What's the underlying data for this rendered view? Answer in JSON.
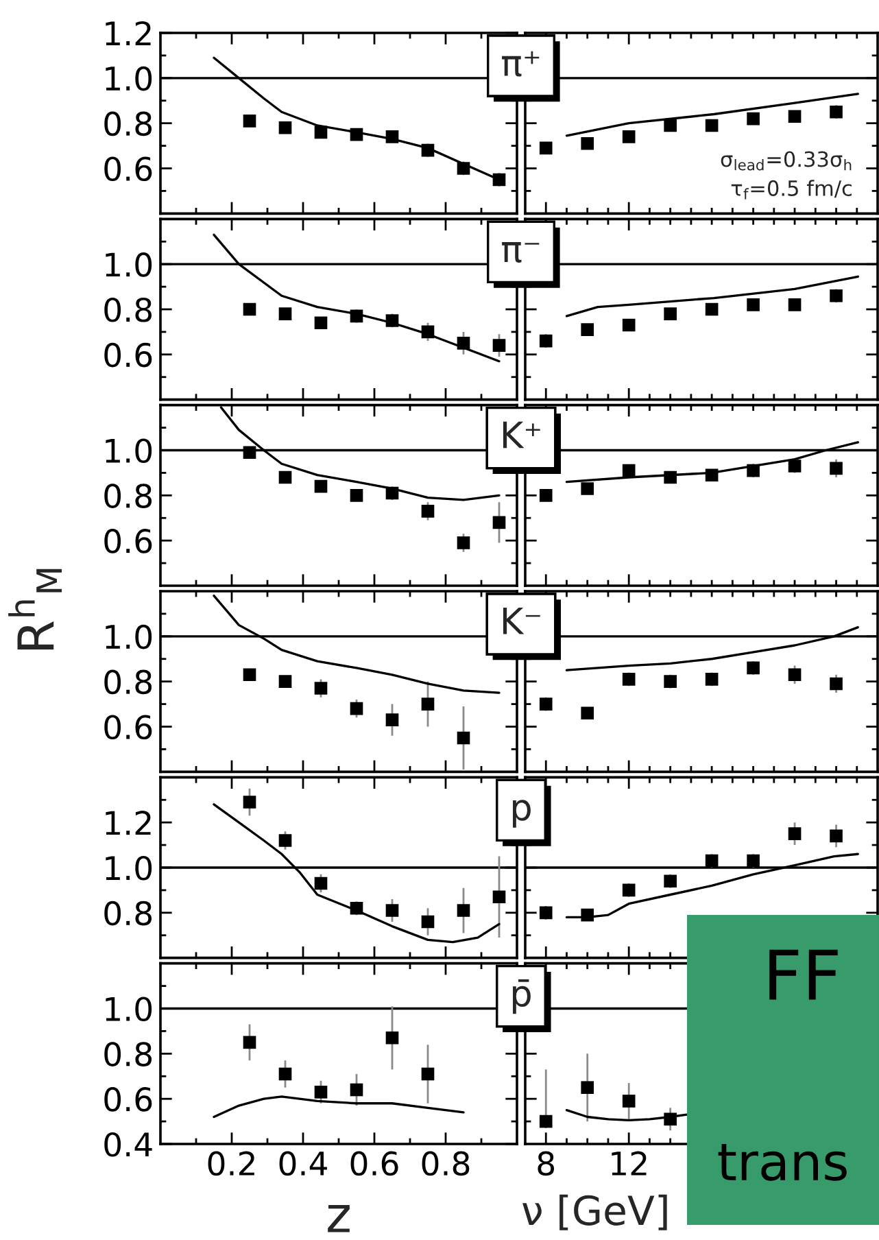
{
  "chart_data": [
    {
      "type": "scatter",
      "title": "π⁺",
      "xlim": [
        0,
        1
      ],
      "xticks": [
        {
          "value": 0.1,
          "label": null
        },
        0.2,
        {
          "value": 0.3,
          "label": null
        },
        0.4,
        {
          "value": 0.5,
          "label": null
        },
        0.6,
        {
          "value": 0.7,
          "label": null
        },
        0.8,
        {
          "value": 0.9,
          "label": null
        }
      ],
      "ylim": [
        0.4,
        1.2
      ],
      "yticks": [
        {
          "value": 0.5,
          "label": null
        },
        0.6,
        {
          "value": 0.7,
          "label": null
        },
        0.8,
        {
          "value": 0.9,
          "label": null
        },
        {
          "value": 1.0,
          "label": "1.0"
        },
        {
          "value": 1.1,
          "label": null
        },
        1.2
      ],
      "tick_labels": "y",
      "ref_lines": [
        {
          "axis": "y",
          "value": 1.0,
          "color": "#000000"
        }
      ],
      "series": [
        {
          "type": "scatter",
          "marker": "square",
          "color": "#000000",
          "x": [
            0.25,
            0.35,
            0.45,
            0.55,
            0.65,
            0.75,
            0.85,
            0.95
          ],
          "values": [
            0.81,
            0.78,
            0.76,
            0.75,
            0.74,
            0.68,
            0.6,
            0.55
          ],
          "errors": [
            0.02,
            0.02,
            0.02,
            0.02,
            0.02,
            0.03,
            0.03,
            0.03
          ]
        },
        {
          "type": "line",
          "color": "#000000",
          "x": [
            0.15,
            0.22,
            0.29,
            0.34,
            0.44,
            0.55,
            0.65,
            0.75,
            0.85,
            0.95
          ],
          "values": [
            1.09,
            1.0,
            0.91,
            0.85,
            0.79,
            0.76,
            0.73,
            0.69,
            0.62,
            0.55
          ]
        }
      ]
    },
    {
      "type": "scatter",
      "xlim": [
        7,
        24
      ],
      "xticks": [
        8,
        {
          "value": 9,
          "label": null
        },
        {
          "value": 10,
          "label": null
        },
        {
          "value": 11,
          "label": null
        },
        12,
        {
          "value": 13,
          "label": null
        },
        {
          "value": 14,
          "label": null
        },
        {
          "value": 15,
          "label": null
        },
        {
          "value": 16,
          "label": null
        },
        {
          "value": 17,
          "label": null
        },
        {
          "value": 18,
          "label": null
        },
        {
          "value": 19,
          "label": null
        },
        {
          "value": 20,
          "label": null
        },
        {
          "value": 21,
          "label": null
        },
        {
          "value": 22,
          "label": null
        },
        {
          "value": 23,
          "label": null
        }
      ],
      "ylim": [
        0.4,
        1.2
      ],
      "yticks": [
        {
          "value": 0.5,
          "label": null
        },
        0.6,
        {
          "value": 0.7,
          "label": null
        },
        0.8,
        {
          "value": 0.9,
          "label": null
        },
        1.0,
        {
          "value": 1.1,
          "label": null
        }
      ],
      "tick_labels": false,
      "ref_lines": [
        {
          "axis": "y",
          "value": 1.0,
          "color": "#000000"
        }
      ],
      "annotations": [
        "σ$_{lead}$=0.33σ$_{h}$",
        "τ$_{f}$=0.5 fm/c"
      ],
      "series": [
        {
          "type": "scatter",
          "marker": "square",
          "color": "#000000",
          "x": [
            8,
            10,
            12,
            14,
            16,
            18,
            20,
            22
          ],
          "values": [
            0.69,
            0.71,
            0.74,
            0.79,
            0.79,
            0.82,
            0.83,
            0.85
          ],
          "errors": [
            0.02,
            0.02,
            0.02,
            0.02,
            0.02,
            0.02,
            0.02,
            0.03
          ]
        },
        {
          "type": "line",
          "color": "#000000",
          "x": [
            9.0,
            12,
            16.1,
            20,
            23.05
          ],
          "values": [
            0.745,
            0.8,
            0.84,
            0.89,
            0.93
          ]
        }
      ]
    },
    {
      "type": "scatter",
      "title": "π⁻",
      "xlim": [
        0,
        1
      ],
      "xticks": [
        {
          "value": 0.1,
          "label": null
        },
        0.2,
        {
          "value": 0.3,
          "label": null
        },
        0.4,
        {
          "value": 0.5,
          "label": null
        },
        0.6,
        {
          "value": 0.7,
          "label": null
        },
        0.8,
        {
          "value": 0.9,
          "label": null
        }
      ],
      "ylim": [
        0.4,
        1.2
      ],
      "yticks": [
        {
          "value": 0.5,
          "label": null
        },
        0.6,
        {
          "value": 0.7,
          "label": null
        },
        0.8,
        {
          "value": 0.9,
          "label": null
        },
        {
          "value": 1.0,
          "label": "1.0"
        },
        {
          "value": 1.1,
          "label": null
        }
      ],
      "tick_labels": "y",
      "ref_lines": [
        {
          "axis": "y",
          "value": 1.0,
          "color": "#000000"
        }
      ],
      "series": [
        {
          "type": "scatter",
          "marker": "square",
          "color": "#000000",
          "x": [
            0.25,
            0.35,
            0.45,
            0.55,
            0.65,
            0.75,
            0.85,
            0.95
          ],
          "values": [
            0.8,
            0.78,
            0.74,
            0.77,
            0.75,
            0.7,
            0.65,
            0.64
          ],
          "errors": [
            0.02,
            0.02,
            0.02,
            0.03,
            0.03,
            0.04,
            0.05,
            0.05
          ]
        },
        {
          "type": "line",
          "color": "#000000",
          "x": [
            0.15,
            0.22,
            0.34,
            0.44,
            0.55,
            0.65,
            0.75,
            0.85,
            0.95
          ],
          "values": [
            1.13,
            1.0,
            0.86,
            0.81,
            0.78,
            0.74,
            0.69,
            0.63,
            0.57
          ]
        }
      ]
    },
    {
      "type": "scatter",
      "xlim": [
        7,
        24
      ],
      "xticks": [
        8,
        {
          "value": 9,
          "label": null
        },
        {
          "value": 10,
          "label": null
        },
        {
          "value": 11,
          "label": null
        },
        12,
        {
          "value": 13,
          "label": null
        },
        {
          "value": 14,
          "label": null
        },
        {
          "value": 15,
          "label": null
        },
        {
          "value": 16,
          "label": null
        },
        {
          "value": 17,
          "label": null
        },
        {
          "value": 18,
          "label": null
        },
        {
          "value": 19,
          "label": null
        },
        {
          "value": 20,
          "label": null
        },
        {
          "value": 21,
          "label": null
        },
        {
          "value": 22,
          "label": null
        },
        {
          "value": 23,
          "label": null
        }
      ],
      "ylim": [
        0.4,
        1.2
      ],
      "yticks": [
        {
          "value": 0.5,
          "label": null
        },
        0.6,
        {
          "value": 0.7,
          "label": null
        },
        0.8,
        {
          "value": 0.9,
          "label": null
        },
        1.0,
        {
          "value": 1.1,
          "label": null
        }
      ],
      "tick_labels": false,
      "ref_lines": [
        {
          "axis": "y",
          "value": 1.0,
          "color": "#000000"
        }
      ],
      "series": [
        {
          "type": "scatter",
          "marker": "square",
          "color": "#000000",
          "x": [
            8,
            10,
            12,
            14,
            16,
            18,
            20,
            22
          ],
          "values": [
            0.66,
            0.71,
            0.73,
            0.78,
            0.8,
            0.82,
            0.82,
            0.86
          ],
          "errors": [
            0.03,
            0.02,
            0.02,
            0.02,
            0.02,
            0.02,
            0.02,
            0.03
          ]
        },
        {
          "type": "line",
          "color": "#000000",
          "x": [
            9.0,
            10.5,
            12,
            16.1,
            20,
            23.05
          ],
          "values": [
            0.77,
            0.81,
            0.82,
            0.85,
            0.89,
            0.945
          ]
        }
      ]
    },
    {
      "type": "scatter",
      "title": "K⁺",
      "xlim": [
        0,
        1
      ],
      "xticks": [
        {
          "value": 0.1,
          "label": null
        },
        0.2,
        {
          "value": 0.3,
          "label": null
        },
        0.4,
        {
          "value": 0.5,
          "label": null
        },
        0.6,
        {
          "value": 0.7,
          "label": null
        },
        0.8,
        {
          "value": 0.9,
          "label": null
        }
      ],
      "ylim": [
        0.4,
        1.2
      ],
      "yticks": [
        {
          "value": 0.5,
          "label": null
        },
        0.6,
        {
          "value": 0.7,
          "label": null
        },
        0.8,
        {
          "value": 0.9,
          "label": null
        },
        {
          "value": 1.0,
          "label": "1.0"
        },
        {
          "value": 1.1,
          "label": null
        }
      ],
      "tick_labels": "y",
      "ref_lines": [
        {
          "axis": "y",
          "value": 1.0,
          "color": "#000000"
        }
      ],
      "series": [
        {
          "type": "scatter",
          "marker": "square",
          "color": "#000000",
          "x": [
            0.25,
            0.35,
            0.45,
            0.55,
            0.65,
            0.75,
            0.85,
            0.95
          ],
          "values": [
            0.99,
            0.88,
            0.84,
            0.8,
            0.81,
            0.73,
            0.59,
            0.68
          ],
          "errors": [
            0.02,
            0.02,
            0.02,
            0.02,
            0.03,
            0.04,
            0.04,
            0.09
          ]
        },
        {
          "type": "line",
          "color": "#000000",
          "x": [
            0.17,
            0.22,
            0.29,
            0.34,
            0.44,
            0.55,
            0.65,
            0.75,
            0.85,
            0.95
          ],
          "values": [
            1.19,
            1.09,
            1.0,
            0.94,
            0.89,
            0.86,
            0.83,
            0.79,
            0.78,
            0.8
          ]
        }
      ]
    },
    {
      "type": "scatter",
      "xlim": [
        7,
        24
      ],
      "xticks": [
        8,
        {
          "value": 9,
          "label": null
        },
        {
          "value": 10,
          "label": null
        },
        {
          "value": 11,
          "label": null
        },
        12,
        {
          "value": 13,
          "label": null
        },
        {
          "value": 14,
          "label": null
        },
        {
          "value": 15,
          "label": null
        },
        {
          "value": 16,
          "label": null
        },
        {
          "value": 17,
          "label": null
        },
        {
          "value": 18,
          "label": null
        },
        {
          "value": 19,
          "label": null
        },
        {
          "value": 20,
          "label": null
        },
        {
          "value": 21,
          "label": null
        },
        {
          "value": 22,
          "label": null
        },
        {
          "value": 23,
          "label": null
        }
      ],
      "ylim": [
        0.4,
        1.2
      ],
      "yticks": [
        {
          "value": 0.5,
          "label": null
        },
        0.6,
        {
          "value": 0.7,
          "label": null
        },
        0.8,
        {
          "value": 0.9,
          "label": null
        },
        1.0,
        {
          "value": 1.1,
          "label": null
        }
      ],
      "tick_labels": false,
      "ref_lines": [
        {
          "axis": "y",
          "value": 1.0,
          "color": "#000000"
        }
      ],
      "series": [
        {
          "type": "scatter",
          "marker": "square",
          "color": "#000000",
          "x": [
            8,
            10,
            12,
            14,
            16,
            18,
            20,
            22
          ],
          "values": [
            0.8,
            0.83,
            0.91,
            0.88,
            0.89,
            0.91,
            0.93,
            0.92
          ],
          "errors": [
            0.02,
            0.02,
            0.02,
            0.02,
            0.02,
            0.03,
            0.03,
            0.04
          ]
        },
        {
          "type": "line",
          "color": "#000000",
          "x": [
            9.0,
            12,
            16,
            20,
            21.5,
            23.05
          ],
          "values": [
            0.86,
            0.88,
            0.9,
            0.96,
            1.0,
            1.035
          ]
        }
      ]
    },
    {
      "type": "scatter",
      "title": "K⁻",
      "ylabel": "R$^{h}$$_{M}$",
      "xlim": [
        0,
        1
      ],
      "xticks": [
        {
          "value": 0.1,
          "label": null
        },
        0.2,
        {
          "value": 0.3,
          "label": null
        },
        0.4,
        {
          "value": 0.5,
          "label": null
        },
        0.6,
        {
          "value": 0.7,
          "label": null
        },
        0.8,
        {
          "value": 0.9,
          "label": null
        }
      ],
      "ylim": [
        0.4,
        1.2
      ],
      "yticks": [
        {
          "value": 0.5,
          "label": null
        },
        0.6,
        {
          "value": 0.7,
          "label": null
        },
        0.8,
        {
          "value": 0.9,
          "label": null
        },
        {
          "value": 1.0,
          "label": "1.0"
        },
        {
          "value": 1.1,
          "label": null
        }
      ],
      "tick_labels": "y",
      "ref_lines": [
        {
          "axis": "y",
          "value": 1.0,
          "color": "#000000"
        }
      ],
      "series": [
        {
          "type": "scatter",
          "marker": "square",
          "color": "#000000",
          "x": [
            0.25,
            0.35,
            0.45,
            0.55,
            0.65,
            0.75,
            0.85
          ],
          "values": [
            0.83,
            0.8,
            0.77,
            0.68,
            0.63,
            0.7,
            0.55
          ],
          "errors": [
            0.02,
            0.02,
            0.04,
            0.04,
            0.07,
            0.1,
            0.14
          ]
        },
        {
          "type": "line",
          "color": "#000000",
          "x": [
            0.15,
            0.22,
            0.29,
            0.34,
            0.44,
            0.55,
            0.65,
            0.75,
            0.85,
            0.95
          ],
          "values": [
            1.18,
            1.05,
            0.99,
            0.94,
            0.89,
            0.86,
            0.83,
            0.79,
            0.76,
            0.75
          ]
        }
      ]
    },
    {
      "type": "scatter",
      "xlim": [
        7,
        24
      ],
      "xticks": [
        8,
        {
          "value": 9,
          "label": null
        },
        {
          "value": 10,
          "label": null
        },
        {
          "value": 11,
          "label": null
        },
        12,
        {
          "value": 13,
          "label": null
        },
        {
          "value": 14,
          "label": null
        },
        {
          "value": 15,
          "label": null
        },
        {
          "value": 16,
          "label": null
        },
        {
          "value": 17,
          "label": null
        },
        {
          "value": 18,
          "label": null
        },
        {
          "value": 19,
          "label": null
        },
        {
          "value": 20,
          "label": null
        },
        {
          "value": 21,
          "label": null
        },
        {
          "value": 22,
          "label": null
        },
        {
          "value": 23,
          "label": null
        }
      ],
      "ylim": [
        0.4,
        1.2
      ],
      "yticks": [
        {
          "value": 0.5,
          "label": null
        },
        0.6,
        {
          "value": 0.7,
          "label": null
        },
        0.8,
        {
          "value": 0.9,
          "label": null
        },
        1.0,
        {
          "value": 1.1,
          "label": null
        }
      ],
      "tick_labels": false,
      "ref_lines": [
        {
          "axis": "y",
          "value": 1.0,
          "color": "#000000"
        }
      ],
      "series": [
        {
          "type": "scatter",
          "marker": "square",
          "color": "#000000",
          "x": [
            8,
            10,
            12,
            14,
            16,
            18,
            20,
            22
          ],
          "values": [
            0.7,
            0.66,
            0.81,
            0.8,
            0.81,
            0.86,
            0.83,
            0.79
          ],
          "errors": [
            0.03,
            0.02,
            0.03,
            0.03,
            0.03,
            0.03,
            0.04,
            0.04
          ]
        },
        {
          "type": "line",
          "color": "#000000",
          "x": [
            9.0,
            12,
            14,
            16,
            18,
            20,
            21.9,
            23.05
          ],
          "values": [
            0.85,
            0.87,
            0.88,
            0.9,
            0.93,
            0.96,
            1.0,
            1.04
          ]
        }
      ]
    },
    {
      "type": "scatter",
      "title": "p",
      "xlim": [
        0,
        1
      ],
      "xticks": [
        {
          "value": 0.1,
          "label": null
        },
        0.2,
        {
          "value": 0.3,
          "label": null
        },
        0.4,
        {
          "value": 0.5,
          "label": null
        },
        0.6,
        {
          "value": 0.7,
          "label": null
        },
        0.8,
        {
          "value": 0.9,
          "label": null
        }
      ],
      "ylim": [
        0.6,
        1.4
      ],
      "yticks": [
        {
          "value": 0.7,
          "label": null
        },
        0.8,
        {
          "value": 0.9,
          "label": null
        },
        {
          "value": 1.0,
          "label": "1.0"
        },
        {
          "value": 1.1,
          "label": null
        },
        1.2,
        {
          "value": 1.3,
          "label": null
        }
      ],
      "tick_labels": "y",
      "ref_lines": [
        {
          "axis": "y",
          "value": 1.0,
          "color": "#000000"
        }
      ],
      "series": [
        {
          "type": "scatter",
          "marker": "square",
          "color": "#000000",
          "x": [
            0.25,
            0.35,
            0.45,
            0.55,
            0.65,
            0.75,
            0.85,
            0.95
          ],
          "values": [
            1.29,
            1.12,
            0.93,
            0.82,
            0.81,
            0.76,
            0.81,
            0.87
          ],
          "errors": [
            0.06,
            0.04,
            0.04,
            0.03,
            0.05,
            0.06,
            0.1,
            0.18
          ]
        },
        {
          "type": "line",
          "color": "#000000",
          "x": [
            0.15,
            0.22,
            0.29,
            0.34,
            0.39,
            0.44,
            0.55,
            0.65,
            0.75,
            0.82,
            0.89,
            0.95
          ],
          "values": [
            1.28,
            1.2,
            1.12,
            1.06,
            0.98,
            0.88,
            0.81,
            0.74,
            0.68,
            0.67,
            0.69,
            0.75
          ]
        }
      ]
    },
    {
      "type": "scatter",
      "xlim": [
        7,
        24
      ],
      "xticks": [
        8,
        {
          "value": 9,
          "label": null
        },
        {
          "value": 10,
          "label": null
        },
        {
          "value": 11,
          "label": null
        },
        12,
        {
          "value": 13,
          "label": null
        },
        {
          "value": 14,
          "label": null
        },
        {
          "value": 15,
          "label": null
        },
        {
          "value": 16,
          "label": null
        },
        {
          "value": 17,
          "label": null
        },
        {
          "value": 18,
          "label": null
        },
        {
          "value": 19,
          "label": null
        },
        {
          "value": 20,
          "label": null
        },
        {
          "value": 21,
          "label": null
        },
        {
          "value": 22,
          "label": null
        },
        {
          "value": 23,
          "label": null
        }
      ],
      "ylim": [
        0.6,
        1.4
      ],
      "yticks": [
        {
          "value": 0.7,
          "label": null
        },
        0.8,
        {
          "value": 0.9,
          "label": null
        },
        1.0,
        {
          "value": 1.1,
          "label": null
        },
        1.2,
        {
          "value": 1.3,
          "label": null
        }
      ],
      "tick_labels": false,
      "ref_lines": [
        {
          "axis": "y",
          "value": 1.0,
          "color": "#000000"
        }
      ],
      "series": [
        {
          "type": "scatter",
          "marker": "square",
          "color": "#000000",
          "x": [
            8,
            10,
            12,
            14,
            16,
            18,
            20,
            22
          ],
          "values": [
            0.8,
            0.79,
            0.9,
            0.94,
            1.03,
            1.03,
            1.15,
            1.14
          ],
          "errors": [
            0.03,
            0.02,
            0.03,
            0.03,
            0.03,
            0.03,
            0.05,
            0.05
          ]
        },
        {
          "type": "line",
          "color": "#000000",
          "x": [
            9.0,
            10,
            11,
            12,
            14,
            16,
            18,
            20,
            21.9,
            23.05
          ],
          "values": [
            0.78,
            0.78,
            0.79,
            0.84,
            0.88,
            0.92,
            0.97,
            1.01,
            1.05,
            1.06
          ]
        }
      ]
    },
    {
      "type": "scatter",
      "title": "p̄",
      "xlabel": "z",
      "xlim": [
        0,
        1
      ],
      "xticks": [
        {
          "value": 0.1,
          "label": null
        },
        0.2,
        {
          "value": 0.3,
          "label": null
        },
        0.4,
        {
          "value": 0.5,
          "label": null
        },
        0.6,
        {
          "value": 0.7,
          "label": null
        },
        0.8,
        {
          "value": 0.9,
          "label": null
        }
      ],
      "ylim": [
        0.4,
        1.2
      ],
      "yticks": [
        0.4,
        {
          "value": 0.5,
          "label": null
        },
        0.6,
        {
          "value": 0.7,
          "label": null
        },
        0.8,
        {
          "value": 0.9,
          "label": null
        },
        {
          "value": 1.0,
          "label": "1.0"
        },
        {
          "value": 1.1,
          "label": null
        }
      ],
      "ref_lines": [
        {
          "axis": "y",
          "value": 1.0,
          "color": "#000000"
        }
      ],
      "series": [
        {
          "type": "scatter",
          "marker": "square",
          "color": "#000000",
          "x": [
            0.25,
            0.35,
            0.45,
            0.55,
            0.65,
            0.75
          ],
          "values": [
            0.85,
            0.71,
            0.63,
            0.64,
            0.87,
            0.71
          ],
          "errors": [
            0.08,
            0.06,
            0.05,
            0.07,
            0.14,
            0.13
          ]
        },
        {
          "type": "line",
          "color": "#000000",
          "x": [
            0.15,
            0.22,
            0.29,
            0.34,
            0.44,
            0.55,
            0.65,
            0.75,
            0.85
          ],
          "values": [
            0.52,
            0.57,
            0.6,
            0.61,
            0.59,
            0.58,
            0.58,
            0.56,
            0.54
          ]
        }
      ]
    },
    {
      "type": "scatter",
      "xlabel": "ν [GeV]",
      "xlim": [
        7,
        24
      ],
      "xticks": [
        8,
        {
          "value": 9,
          "label": null
        },
        {
          "value": 10,
          "label": null
        },
        {
          "value": 11,
          "label": null
        },
        12,
        {
          "value": 13,
          "label": null
        },
        {
          "value": 14,
          "label": null
        },
        {
          "value": 15,
          "label": null
        },
        {
          "value": 16,
          "label": null
        },
        {
          "value": 17,
          "label": null
        },
        {
          "value": 18,
          "label": null
        },
        {
          "value": 19,
          "label": null
        },
        {
          "value": 20,
          "label": null
        },
        {
          "value": 21,
          "label": null
        },
        {
          "value": 22,
          "label": null
        },
        {
          "value": 23,
          "label": null
        }
      ],
      "ylim": [
        0.4,
        1.2
      ],
      "yticks": [
        {
          "value": 0.5,
          "label": null
        },
        0.6,
        {
          "value": 0.7,
          "label": null
        },
        0.8,
        {
          "value": 0.9,
          "label": null
        },
        1.0,
        {
          "value": 1.1,
          "label": null
        }
      ],
      "tick_labels": "x",
      "ref_lines": [
        {
          "axis": "y",
          "value": 1.0,
          "color": "#000000"
        }
      ],
      "series": [
        {
          "type": "scatter",
          "marker": "square",
          "color": "#000000",
          "x": [
            8,
            10,
            12,
            14
          ],
          "values": [
            0.5,
            0.65,
            0.59,
            0.51
          ],
          "errors": [
            [
              0.47,
              0.73
            ],
            [
              0.5,
              0.8
            ],
            0.08,
            0.05
          ]
        },
        {
          "type": "line",
          "color": "#000000",
          "x": [
            9.0,
            10,
            11,
            12,
            13,
            14,
            14.8
          ],
          "values": [
            0.55,
            0.52,
            0.51,
            0.505,
            0.51,
            0.52,
            0.53
          ]
        }
      ]
    },
    {
      "type": "other",
      "annotations": [
        "FF",
        "trans"
      ]
    }
  ]
}
